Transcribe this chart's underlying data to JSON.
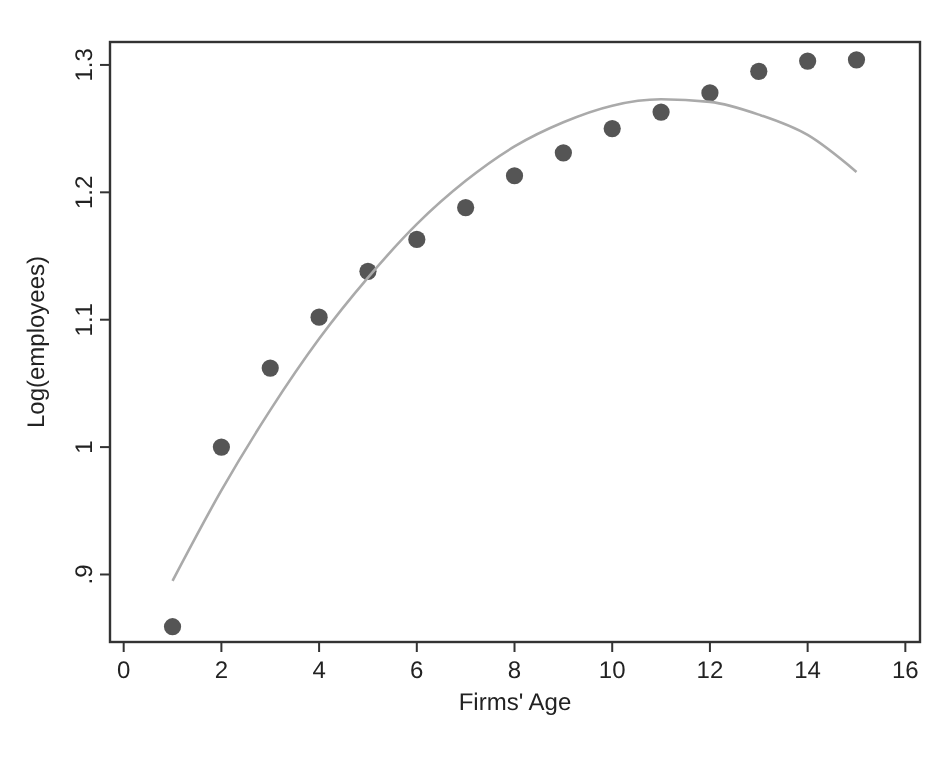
{
  "chart_data": {
    "type": "scatter",
    "xlabel": "Firms' Age",
    "ylabel": "Log(employees)",
    "xlim": [
      -0.28,
      16.3
    ],
    "ylim": [
      0.847,
      1.318
    ],
    "xticks": [
      0,
      2,
      4,
      6,
      8,
      10,
      12,
      14,
      16
    ],
    "yticks": [
      {
        "value": 0.9,
        "label": ".9"
      },
      1,
      1.1,
      1.2,
      1.3
    ],
    "grid": false,
    "series": [
      {
        "color": "#555555",
        "marker": "circle",
        "x": [
          1,
          2,
          3,
          4,
          5,
          6,
          7,
          8,
          9,
          10,
          11,
          12,
          13,
          14,
          15
        ],
        "values": [
          0.859,
          1.0,
          1.062,
          1.102,
          1.138,
          1.163,
          1.188,
          1.213,
          1.231,
          1.25,
          1.263,
          1.278,
          1.295,
          1.303,
          1.304
        ]
      },
      {
        "type": "line",
        "color": "#aaaaaa",
        "marker": "none",
        "line_style": "solid",
        "x": [
          1,
          2,
          3,
          4,
          5,
          6,
          7,
          8,
          9,
          10,
          11,
          12,
          13,
          14,
          15
        ],
        "values": [
          0.895,
          0.966,
          1.029,
          1.085,
          1.133,
          1.175,
          1.209,
          1.236,
          1.255,
          1.268,
          1.273,
          1.271,
          1.261,
          1.245,
          1.216
        ]
      }
    ]
  }
}
